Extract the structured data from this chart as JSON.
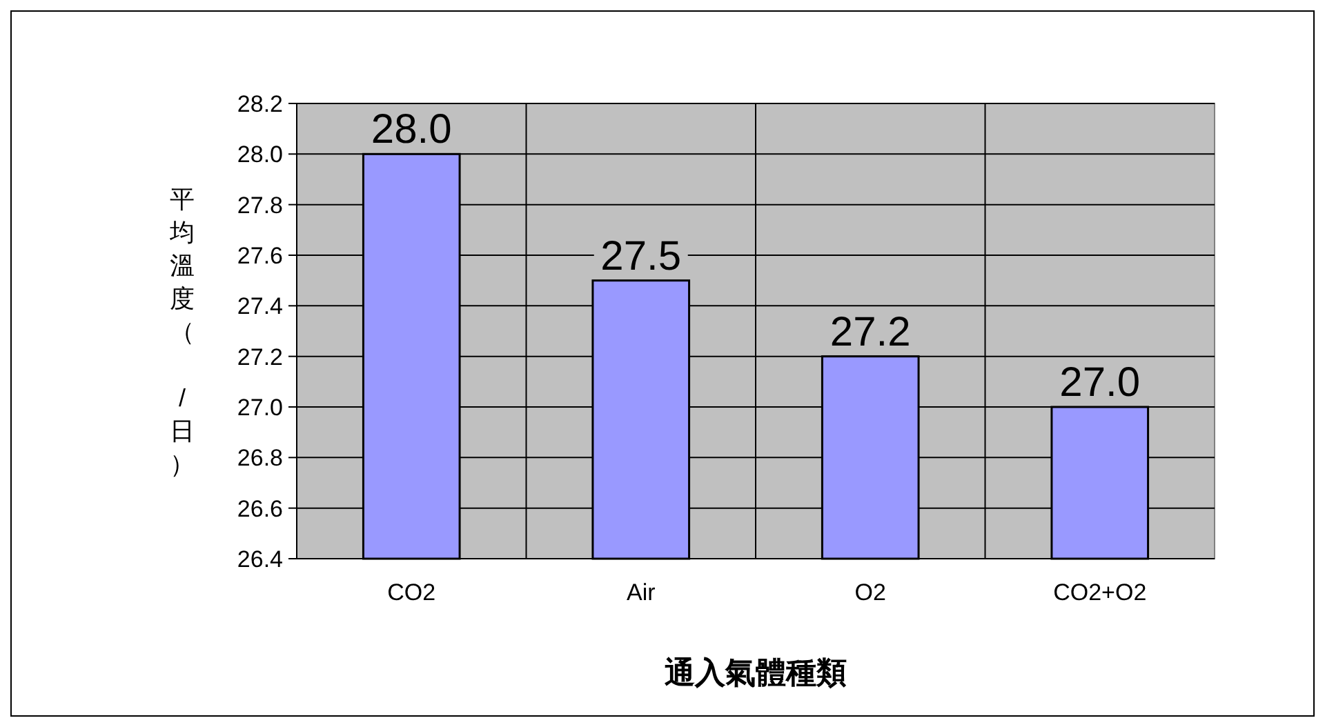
{
  "chart_data": {
    "type": "bar",
    "xlabel": "通入氣體種類",
    "ylabel": "平均溫度（ /日）",
    "categories": [
      "CO2",
      "Air",
      "O2",
      "CO2+O2"
    ],
    "values": [
      28.0,
      27.5,
      27.2,
      27.0
    ],
    "color": "#9999ff",
    "ylim": [
      26.4,
      28.2
    ],
    "yticks": [
      "26.4",
      "26.6",
      "26.8",
      "27.0",
      "27.2",
      "27.4",
      "27.6",
      "27.8",
      "28.0",
      "28.2"
    ],
    "grid": true,
    "value_labels": [
      "28.0",
      "27.5",
      "27.2",
      "27.0"
    ]
  }
}
